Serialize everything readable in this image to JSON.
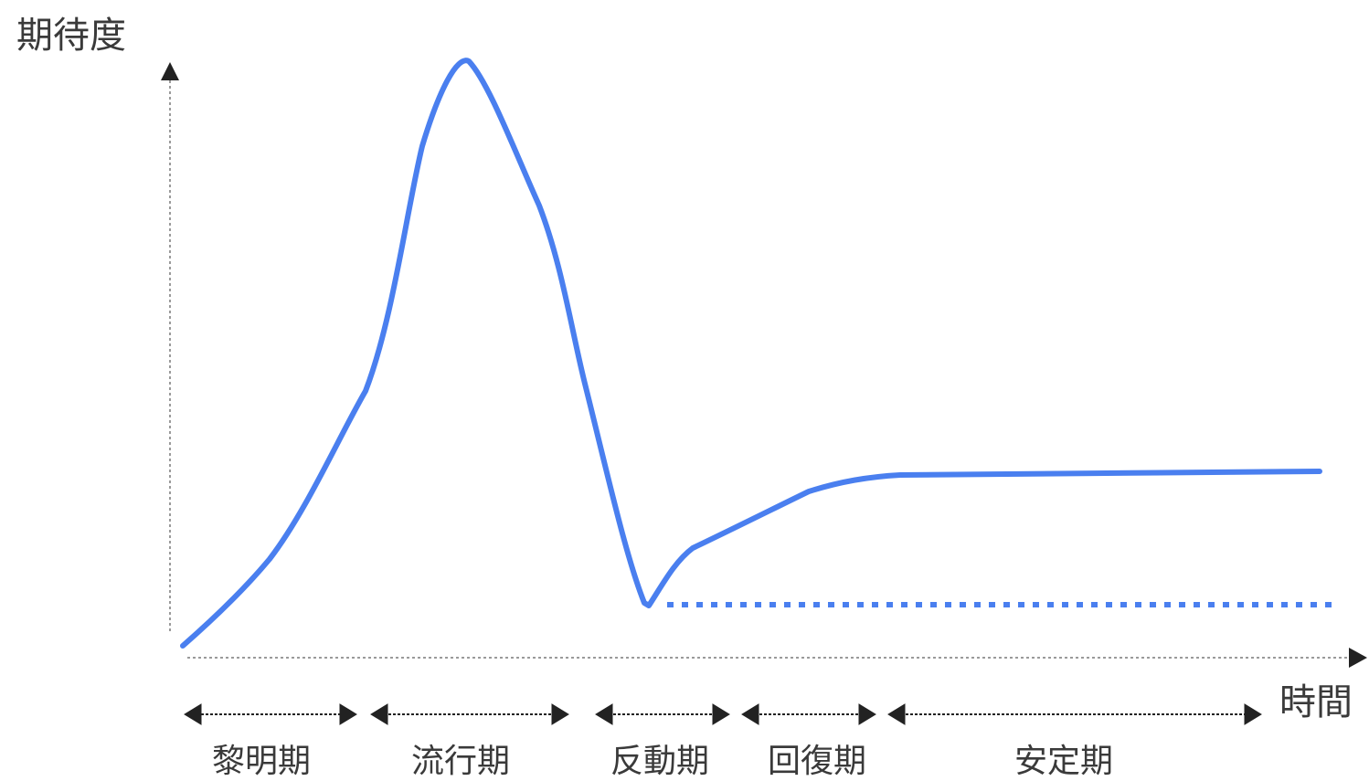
{
  "diagram": {
    "y_axis_title": "期待度",
    "x_axis_title": "時間",
    "phases": [
      {
        "label": "黎明期"
      },
      {
        "label": "流行期"
      },
      {
        "label": "反動期"
      },
      {
        "label": "回復期"
      },
      {
        "label": "安定期"
      }
    ],
    "colors": {
      "curve": "#4a7fef",
      "baseline_dotted": "#4a7fef",
      "axis": "#9a9a9a",
      "arrows": "#222222",
      "text": "#3a3a3a"
    },
    "curve_shape": "hype-cycle",
    "baseline_style": "dotted"
  }
}
